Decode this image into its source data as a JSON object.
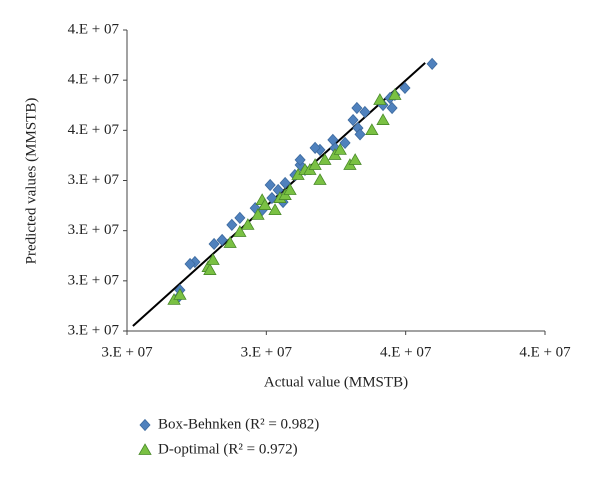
{
  "chart_data": {
    "type": "scatter",
    "x_label": "Actual value (MMSTB)",
    "y_label": "Predicted values (MMSTB)",
    "xlim": [
      28000000,
      40000000
    ],
    "ylim": [
      28000000,
      40000000
    ],
    "xticks": [
      {
        "value": 28000000,
        "label": "3.E + 07"
      },
      {
        "value": 32000000,
        "label": "3.E + 07"
      },
      {
        "value": 36000000,
        "label": "4.E + 07"
      },
      {
        "value": 40000000,
        "label": "4.E + 07"
      }
    ],
    "yticks": [
      {
        "value": 28000000,
        "label": "3.E + 07"
      },
      {
        "value": 30000000,
        "label": "3.E + 07"
      },
      {
        "value": 32000000,
        "label": "3.E + 07"
      },
      {
        "value": 34000000,
        "label": "3.E + 07"
      },
      {
        "value": 36000000,
        "label": "4.E + 07"
      },
      {
        "value": 38000000,
        "label": "4.E + 07"
      },
      {
        "value": 40000000,
        "label": "4.E + 07"
      }
    ],
    "trend_line": {
      "x": [
        28170000,
        36560000
      ],
      "y": [
        28200000,
        38690000
      ],
      "color": "#000000"
    },
    "series": [
      {
        "name": "Box-Behnken (R² = 0.982)",
        "color": "#4f81bd",
        "marker": "diamond",
        "x": [
          36760000,
          35980000,
          35690000,
          35550000,
          35610000,
          35350000,
          34830000,
          34600000,
          34630000,
          34490000,
          34690000,
          34260000,
          33970000,
          33910000,
          33540000,
          33400000,
          33110000,
          32970000,
          32970000,
          32820000,
          32540000,
          32480000,
          32340000,
          32110000,
          32160000,
          31880000,
          31680000,
          31240000,
          31010000,
          30730000,
          30500000,
          29950000,
          29810000,
          29520000,
          29460000
        ],
        "values": [
          38650000,
          37690000,
          37410000,
          37290000,
          36890000,
          37010000,
          36730000,
          36890000,
          36090000,
          36410000,
          35840000,
          35500000,
          35300000,
          35620000,
          35220000,
          35300000,
          34420000,
          34620000,
          34820000,
          34220000,
          33900000,
          33140000,
          33620000,
          33820000,
          33300000,
          32820000,
          32900000,
          32510000,
          32230000,
          31630000,
          31470000,
          30750000,
          30670000,
          29630000,
          29320000
        ]
      },
      {
        "name": "D-optimal (R² = 0.972)",
        "color": "#7ac143",
        "marker": "triangle",
        "x": [
          29350000,
          29520000,
          30330000,
          30380000,
          30470000,
          30960000,
          31240000,
          31470000,
          31760000,
          31880000,
          31960000,
          32250000,
          32390000,
          32540000,
          32680000,
          32910000,
          33110000,
          33250000,
          33400000,
          33540000,
          33680000,
          33970000,
          34120000,
          34400000,
          34550000,
          35030000,
          35260000,
          35350000,
          35690000
        ],
        "values": [
          29240000,
          29440000,
          30550000,
          30430000,
          30830000,
          31510000,
          31950000,
          32230000,
          32630000,
          33220000,
          33020000,
          32820000,
          33300000,
          33420000,
          33620000,
          34220000,
          34420000,
          34420000,
          34620000,
          34020000,
          34820000,
          35020000,
          35220000,
          34620000,
          34820000,
          36010000,
          37210000,
          36410000,
          37410000
        ]
      }
    ]
  }
}
